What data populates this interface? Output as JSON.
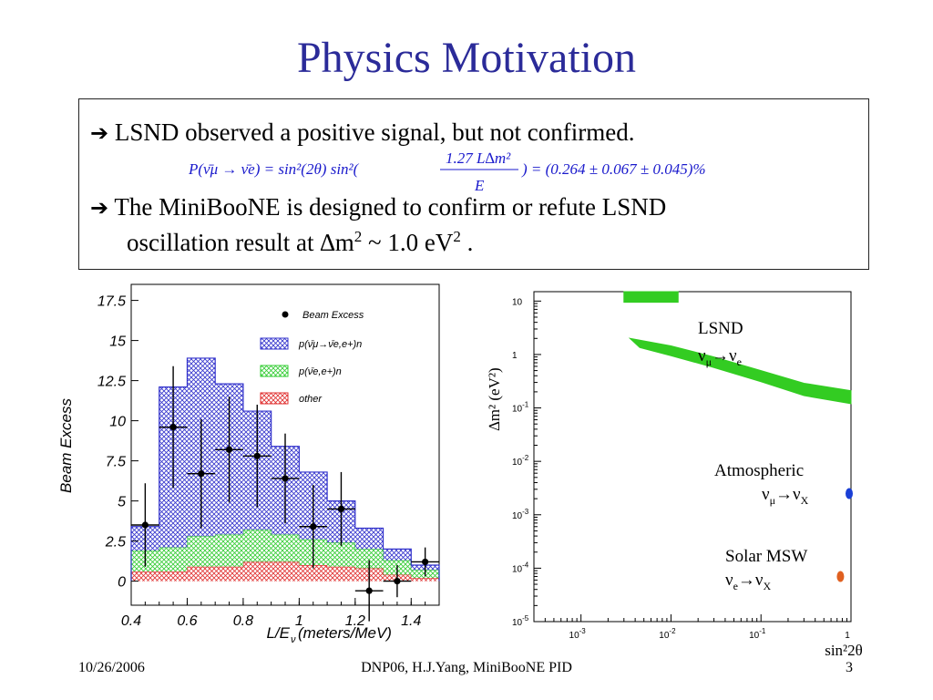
{
  "slide": {
    "title": "Physics Motivation",
    "bullets": [
      {
        "arrow": "➔",
        "text": "LSND observed a positive signal, but not confirmed."
      },
      {
        "arrow": "➔",
        "text_line1": "The MiniBooNE is designed to confirm or refute LSND",
        "text_line2_pre": "oscillation result at ∆m",
        "sup2": "2",
        "text_line2_mid": " ~ 1.0 eV",
        "sup3": "2",
        "text_line2_post": " ."
      }
    ],
    "formula": {
      "lhs": "P(ν̄μ → ν̄e) = sin²(2θ) sin²(",
      "numerator": "1.27 L∆m²",
      "denominator": "E",
      "rhs": ") = (0.264 ± 0.067 ± 0.045)%"
    },
    "footer": {
      "date": "10/26/2006",
      "center": "DNP06, H.J.Yang,  MiniBooNE PID",
      "page": "3"
    }
  },
  "chart_data": [
    {
      "type": "bar",
      "ylabel": "Beam Excess",
      "xlabel": "L/E",
      "xlabel_sub": "ν",
      "xlabel_post": " (meters/MeV)",
      "xlim": [
        0.4,
        1.5
      ],
      "ylim": [
        -1.5,
        18.5
      ],
      "xticks": [
        "0.4",
        "0.6",
        "0.8",
        "1",
        "1.2",
        "1.4"
      ],
      "yticks": [
        "0",
        "2.5",
        "5",
        "7.5",
        "10",
        "12.5",
        "15",
        "17.5"
      ],
      "bin_edges": [
        0.4,
        0.5,
        0.6,
        0.7,
        0.8,
        0.9,
        1.0,
        1.1,
        1.2,
        1.3,
        1.4,
        1.5
      ],
      "stacks": [
        {
          "name": "other",
          "color": "#e03030",
          "values": [
            0.6,
            0.6,
            0.9,
            0.9,
            1.2,
            1.2,
            1.0,
            0.9,
            0.8,
            0.4,
            0.2
          ]
        },
        {
          "name": "p(ν̄e,e+)n",
          "color": "#33cc33",
          "values": [
            1.3,
            1.5,
            1.9,
            2.0,
            2.0,
            1.7,
            1.6,
            1.5,
            1.2,
            0.9,
            0.5
          ]
        },
        {
          "name": "p(ν̄μ→ν̄e,e+)n",
          "color": "#3333cc",
          "values": [
            1.5,
            10.0,
            11.1,
            9.4,
            7.4,
            5.5,
            4.2,
            2.6,
            1.3,
            0.7,
            0.3
          ]
        }
      ],
      "points": {
        "name": "Beam Excess",
        "x": [
          0.45,
          0.55,
          0.65,
          0.75,
          0.85,
          0.95,
          1.05,
          1.15,
          1.25,
          1.35,
          1.45
        ],
        "y": [
          3.5,
          9.6,
          6.7,
          8.2,
          7.8,
          6.4,
          3.4,
          4.5,
          -0.6,
          0.0,
          1.2
        ],
        "err": [
          2.6,
          3.8,
          3.4,
          3.3,
          3.2,
          2.8,
          2.6,
          2.3,
          1.9,
          1.0,
          0.9
        ]
      },
      "legend": {
        "placement": "top-right",
        "entries": [
          "Beam Excess",
          "p(ν̄μ→ν̄e,e+)n",
          "p(ν̄e,e+)n",
          "other"
        ]
      }
    },
    {
      "type": "area",
      "xlabel": "sin²2θ",
      "ylabel": "∆m² (eV²)",
      "xscale": "log",
      "yscale": "log",
      "xlim": [
        0.0003,
        1
      ],
      "ylim": [
        1e-05,
        15
      ],
      "xticks": [
        {
          "base": "10",
          "exp": "-3",
          "v": 0.001
        },
        {
          "base": "10",
          "exp": "-2",
          "v": 0.01
        },
        {
          "base": "10",
          "exp": "-1",
          "v": 0.1
        },
        {
          "base": "1",
          "exp": "",
          "v": 1
        }
      ],
      "yticks": [
        {
          "base": "10",
          "exp": "",
          "v": 10
        },
        {
          "base": "1",
          "exp": "",
          "v": 1
        },
        {
          "base": "10",
          "exp": "-1",
          "v": 0.1
        },
        {
          "base": "10",
          "exp": "-2",
          "v": 0.01
        },
        {
          "base": "10",
          "exp": "-3",
          "v": 0.001
        },
        {
          "base": "10",
          "exp": "-4",
          "v": 0.0001
        },
        {
          "base": "10",
          "exp": "-5",
          "v": 1e-05
        }
      ],
      "regions": [
        {
          "name": "LSND",
          "color": "#33cc22",
          "upper": [
            [
              0.0035,
              2.0
            ],
            [
              0.01,
              1.45
            ],
            [
              0.03,
              0.9
            ],
            [
              0.1,
              0.5
            ],
            [
              0.3,
              0.29
            ],
            [
              1,
              0.21
            ]
          ],
          "lower": [
            [
              0.0045,
              1.35
            ],
            [
              0.01,
              0.95
            ],
            [
              0.03,
              0.57
            ],
            [
              0.1,
              0.31
            ],
            [
              0.3,
              0.17
            ],
            [
              1,
              0.12
            ]
          ]
        },
        {
          "name": "LSND-high",
          "color": "#33cc22",
          "upper": [
            [
              0.003,
              15
            ],
            [
              0.012,
              15
            ]
          ],
          "lower": [
            [
              0.003,
              9.5
            ],
            [
              0.012,
              9.5
            ]
          ]
        }
      ],
      "region_labels": {
        "lsnd": {
          "line1": "LSND",
          "nu1": "ν",
          "sub1": "μ",
          "arrow": "→",
          "nu2": "ν",
          "sub2": "e"
        },
        "atm": {
          "line1": "Atmospheric",
          "nu1": "ν",
          "sub1": "μ",
          "arrow": "→",
          "nu2": "ν",
          "sub2": "X"
        },
        "solar": {
          "line1": "Solar MSW",
          "nu1": "ν",
          "sub1": "e",
          "arrow": "→",
          "nu2": "ν",
          "sub2": "X"
        }
      },
      "markers": [
        {
          "name": "Atmospheric",
          "x": 1.0,
          "y": 0.0025,
          "color": "#1a3fd6"
        },
        {
          "name": "Solar MSW",
          "x": 0.8,
          "y": 7e-05,
          "color": "#e06020"
        }
      ]
    }
  ]
}
